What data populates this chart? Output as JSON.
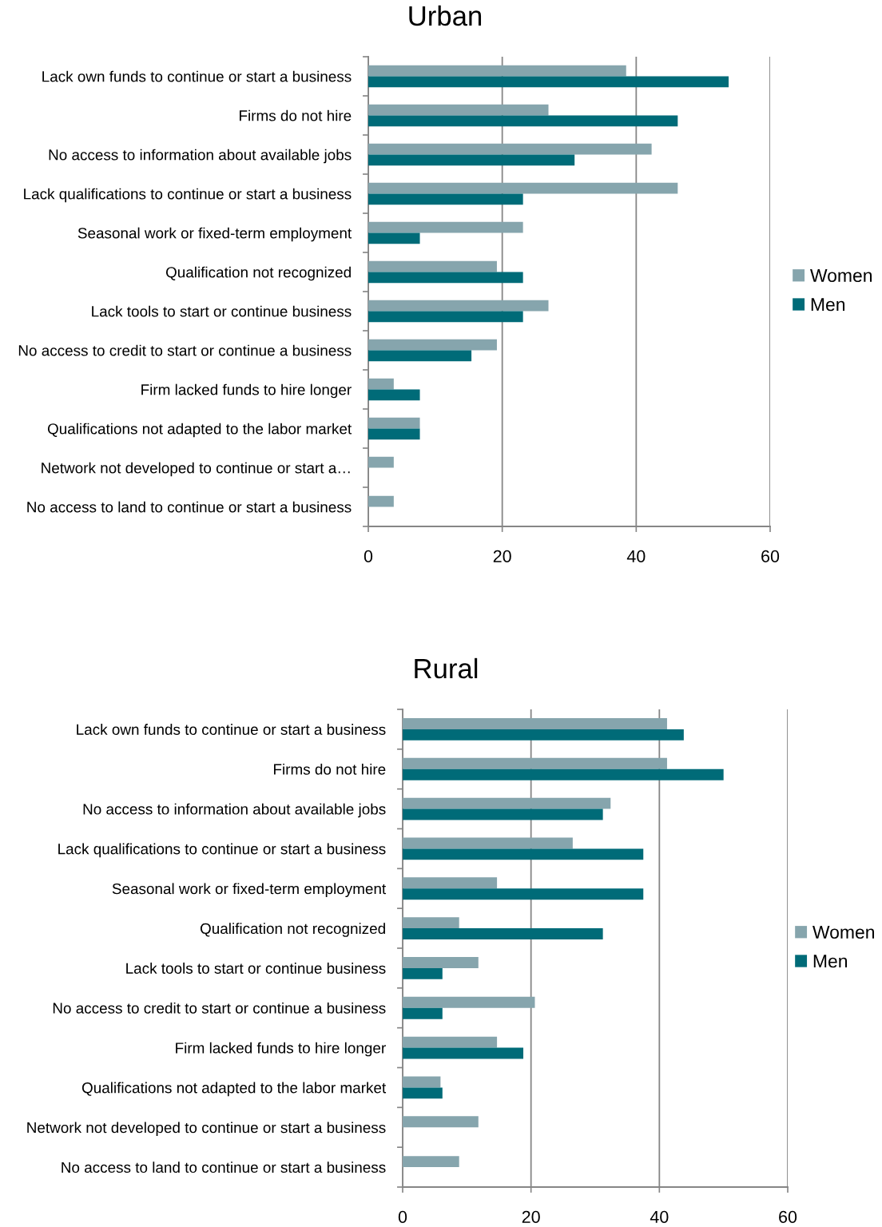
{
  "chart_data": [
    {
      "type": "bar",
      "orientation": "horizontal",
      "title": "Urban",
      "categories": [
        "Lack own funds to continue or start a business",
        "Firms do not hire",
        "No access to information about available jobs",
        "Lack qualifications to continue or start a business",
        "Seasonal work or fixed-term employment",
        "Qualification not recognized",
        "Lack tools to start or continue business",
        "No access to credit to start or continue a business",
        "Firm lacked funds to hire longer",
        "Qualifications not adapted to the labor market",
        "Network not developed to continue or start a…",
        "No access to land to continue or start a business"
      ],
      "series": [
        {
          "name": "Women",
          "color": "#86a5ad",
          "values": [
            38.5,
            26.9,
            42.3,
            46.2,
            23.1,
            19.2,
            26.9,
            19.2,
            3.8,
            7.7,
            3.8,
            3.8
          ]
        },
        {
          "name": "Men",
          "color": "#006b78",
          "values": [
            53.8,
            46.2,
            30.8,
            23.1,
            7.7,
            23.1,
            23.1,
            15.4,
            7.7,
            7.7,
            null,
            null
          ]
        }
      ],
      "xlim": [
        0,
        60
      ],
      "xticks": [
        0,
        20,
        40,
        60
      ],
      "grid": "x",
      "legend": "right"
    },
    {
      "type": "bar",
      "orientation": "horizontal",
      "title": "Rural",
      "categories": [
        "Lack own funds to continue or start a business",
        "Firms do not hire",
        "No access to information about available jobs",
        "Lack qualifications to continue or start a business",
        "Seasonal work or fixed-term employment",
        "Qualification not recognized",
        "Lack tools to start or continue business",
        "No access to credit to start or continue a business",
        "Firm lacked funds to hire longer",
        "Qualifications not adapted to the labor market",
        "Network not developed to continue or start a business",
        "No access to land to continue or start a business"
      ],
      "series": [
        {
          "name": "Women",
          "color": "#86a5ad",
          "values": [
            41.2,
            41.2,
            32.4,
            26.5,
            14.7,
            8.8,
            11.8,
            20.6,
            14.7,
            5.9,
            11.8,
            8.8
          ]
        },
        {
          "name": "Men",
          "color": "#006b78",
          "values": [
            43.8,
            50.0,
            31.2,
            37.5,
            37.5,
            31.2,
            6.2,
            6.2,
            18.8,
            6.2,
            null,
            null
          ]
        }
      ],
      "xlim": [
        0,
        60
      ],
      "xticks": [
        0,
        20,
        40,
        60
      ],
      "grid": "x",
      "legend": "right"
    }
  ]
}
